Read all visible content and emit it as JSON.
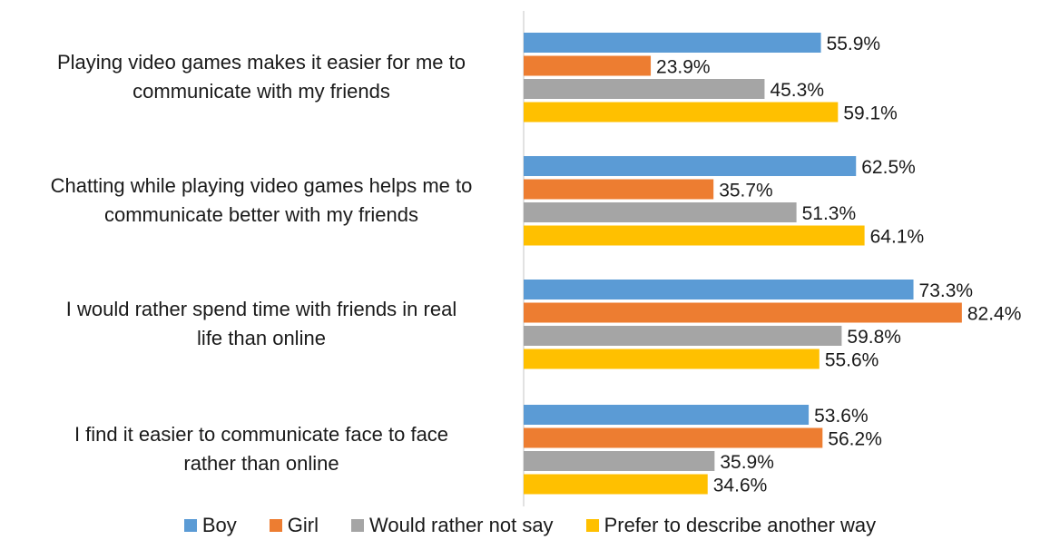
{
  "chart_data": {
    "type": "bar",
    "orientation": "horizontal",
    "categories": [
      "Playing video games makes it easier for me to\ncommunicate with my friends",
      "Chatting while playing video games helps me to\ncommunicate better with my friends",
      "I would rather spend time with friends in real\nlife than online",
      "I find it easier to communicate face to face\nrather than online"
    ],
    "series": [
      {
        "name": "Boy",
        "color": "#5B9BD5",
        "values": [
          55.9,
          62.5,
          73.3,
          53.6
        ],
        "labels": [
          "55.9%",
          "62.5%",
          "73.3%",
          "53.6%"
        ]
      },
      {
        "name": "Girl",
        "color": "#ED7D31",
        "values": [
          23.9,
          35.7,
          82.4,
          56.2
        ],
        "labels": [
          "23.9%",
          "35.7%",
          "82.4%",
          "56.2%"
        ]
      },
      {
        "name": "Would rather not say",
        "color": "#A5A5A5",
        "values": [
          45.3,
          51.3,
          59.8,
          35.9
        ],
        "labels": [
          "45.3%",
          "51.3%",
          "59.8%",
          "35.9%"
        ]
      },
      {
        "name": "Prefer to describe another way",
        "color": "#FFC000",
        "values": [
          59.1,
          64.1,
          55.6,
          34.6
        ],
        "labels": [
          "59.1%",
          "64.1%",
          "55.6%",
          "34.6%"
        ]
      }
    ],
    "title": "",
    "xlabel": "",
    "ylabel": "",
    "xlim": [
      0,
      100
    ],
    "grid": false,
    "legend_position": "bottom"
  }
}
